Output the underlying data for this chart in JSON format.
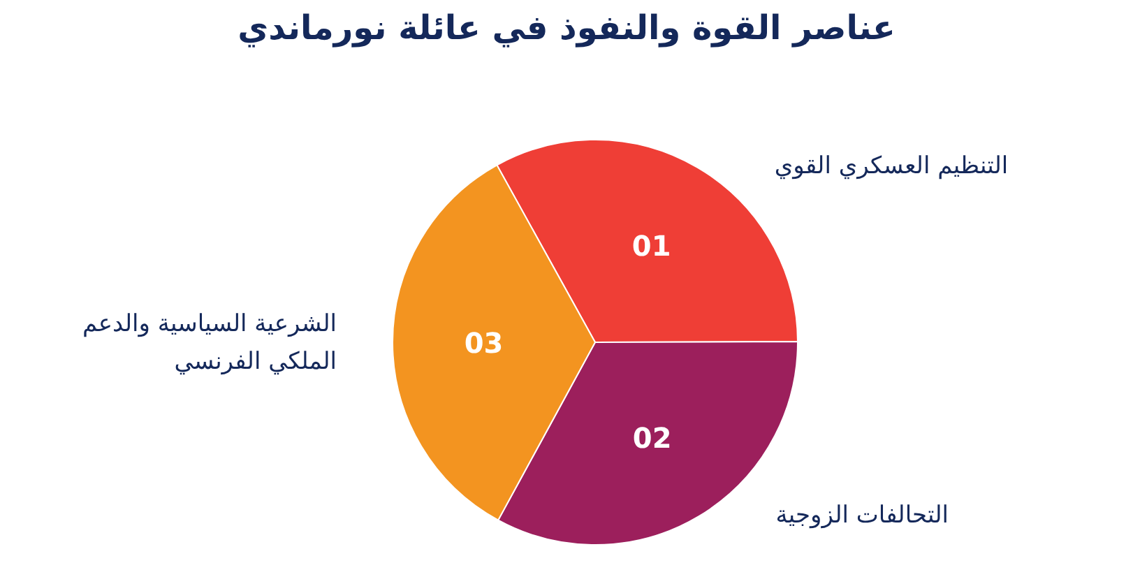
{
  "chart_data": {
    "type": "pie",
    "title": "عناصر القوة والنفوذ في عائلة نورماندي",
    "categories": [
      "التنظيم العسكري القوي",
      "التحالفات الزوجية",
      "الشرعية السياسية والدعم الملكي الفرنسي"
    ],
    "values": [
      33,
      33,
      34
    ],
    "colors": [
      "#ef3e36",
      "#9c1f5c",
      "#f39420"
    ],
    "annotations": [
      "01",
      "02",
      "03"
    ]
  }
}
